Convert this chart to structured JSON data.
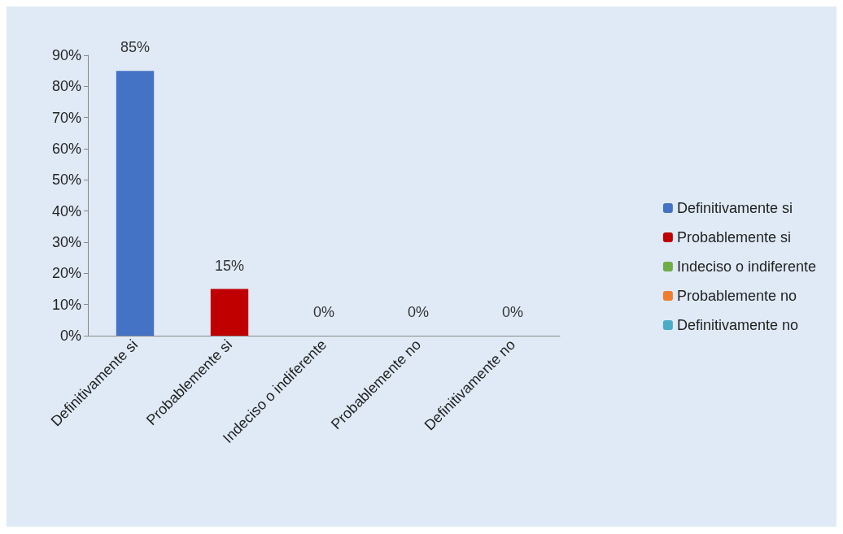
{
  "chart_data": {
    "type": "bar",
    "categories": [
      "Definitivamente si",
      "Probablemente si",
      "Indeciso o indiferente",
      "Probablemente no",
      "Definitivamente no"
    ],
    "stacked": true,
    "series": [
      {
        "name": "Definitivamente si",
        "color": "#4472c4",
        "values": [
          85,
          null,
          null,
          null,
          null
        ],
        "value_labels": [
          "85%",
          null,
          null,
          null,
          null
        ]
      },
      {
        "name": "Probablemente si",
        "color": "#c00000",
        "values": [
          null,
          15,
          null,
          null,
          null
        ],
        "value_labels": [
          null,
          "15%",
          null,
          null,
          null
        ]
      },
      {
        "name": "Indeciso o indiferente",
        "color": "#70ad47",
        "values": [
          null,
          null,
          0,
          null,
          null
        ],
        "value_labels": [
          null,
          null,
          "0%",
          null,
          null
        ]
      },
      {
        "name": "Probablemente no",
        "color": "#ed7d31",
        "values": [
          null,
          null,
          null,
          0,
          null
        ],
        "value_labels": [
          null,
          null,
          null,
          "0%",
          null
        ]
      },
      {
        "name": "Definitivamente no",
        "color": "#4bacc6",
        "values": [
          null,
          null,
          null,
          null,
          0
        ],
        "value_labels": [
          null,
          null,
          null,
          null,
          "0%"
        ]
      }
    ],
    "ylim": [
      0,
      90
    ],
    "yticks": [
      {
        "value": 0,
        "label": "0%"
      },
      {
        "value": 10,
        "label": "10%"
      },
      {
        "value": 20,
        "label": "20%"
      },
      {
        "value": 30,
        "label": "30%"
      },
      {
        "value": 40,
        "label": "40%"
      },
      {
        "value": 50,
        "label": "50%"
      },
      {
        "value": 60,
        "label": "60%"
      },
      {
        "value": 70,
        "label": "70%"
      },
      {
        "value": 80,
        "label": "80%"
      },
      {
        "value": 90,
        "label": "90%"
      }
    ],
    "grid": false,
    "legend": "right"
  }
}
